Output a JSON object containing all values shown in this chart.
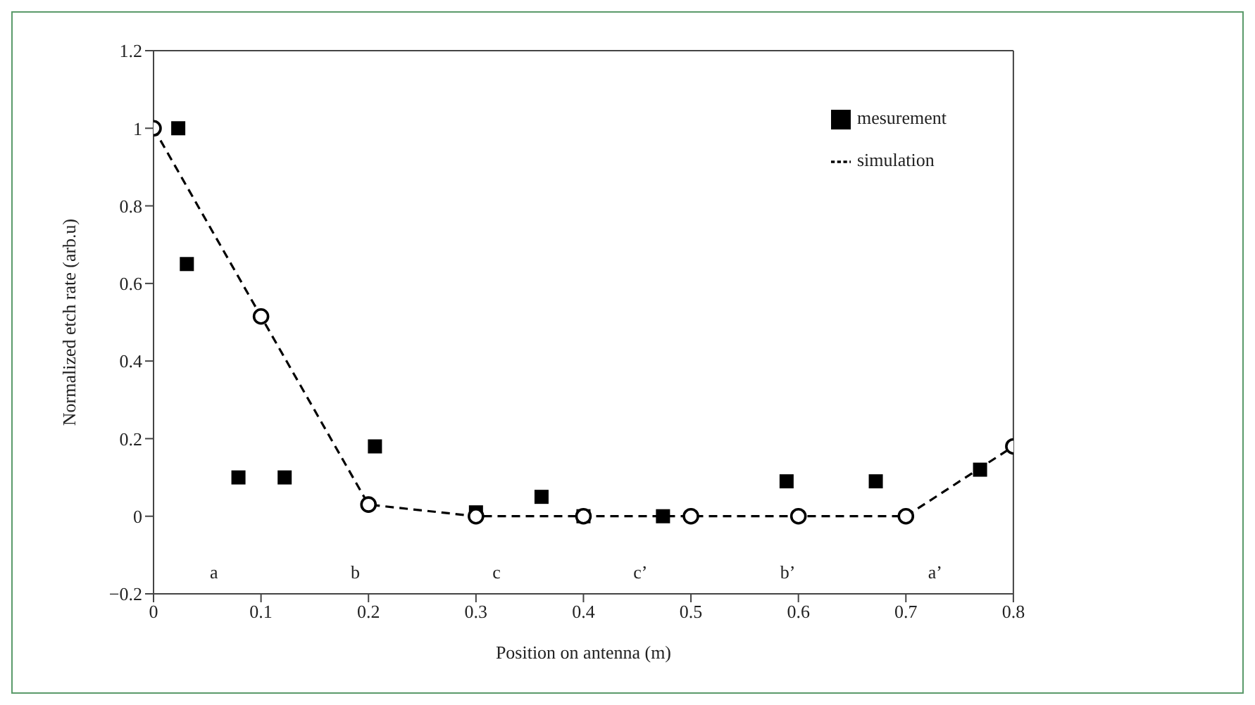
{
  "chart_data": {
    "type": "scatter",
    "xlabel": "Position on antenna (m)",
    "ylabel": "Normalized etch rate (arb.u)",
    "xlim": [
      0,
      0.8
    ],
    "xticks": [
      0,
      0.1,
      0.2,
      0.3,
      0.4,
      0.5,
      0.6,
      0.7,
      0.8
    ],
    "ylim": [
      -0.2,
      1.2
    ],
    "yticks": [
      {
        "value": -0.2,
        "label": "−0.2"
      },
      0,
      0.2,
      0.4,
      0.6,
      0.8,
      1.0,
      1.2
    ],
    "grid": false,
    "legend": "top right",
    "series": [
      {
        "name": "mesurement",
        "marker": "square",
        "color": "#000000",
        "x": [
          0.023,
          0.031,
          0.079,
          0.122,
          0.206,
          0.3,
          0.361,
          0.4,
          0.474,
          0.589,
          0.672,
          0.769
        ],
        "values": [
          1.0,
          0.65,
          0.1,
          0.1,
          0.18,
          0.01,
          0.05,
          0.0,
          0.0,
          0.09,
          0.09,
          0.12
        ]
      },
      {
        "name": "simulation",
        "type": "line",
        "marker": "circle",
        "line_style": "dashed",
        "color": "#000000",
        "x": [
          0,
          0.1,
          0.2,
          0.3,
          0.4,
          0.5,
          0.6,
          0.7,
          0.8
        ],
        "values": [
          1.0,
          0.515,
          0.03,
          0.0,
          0.0,
          0.0,
          0.0,
          0.0,
          0.18
        ]
      }
    ],
    "annotations": [
      "a",
      "b",
      "c",
      "c’",
      "b’",
      "a’"
    ]
  }
}
